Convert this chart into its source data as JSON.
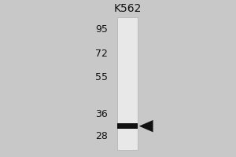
{
  "title": "K562",
  "mw_markers": [
    95,
    72,
    55,
    36,
    28
  ],
  "band_mw": 31.5,
  "bg_color": "#c8c8c8",
  "lane_color": "#e8e8e8",
  "lane_color2": "#f0f0f0",
  "band_color": "#111111",
  "arrow_color": "#111111",
  "text_color": "#111111",
  "title_fontsize": 10,
  "marker_fontsize": 9,
  "fig_width": 3.0,
  "fig_height": 2.0
}
